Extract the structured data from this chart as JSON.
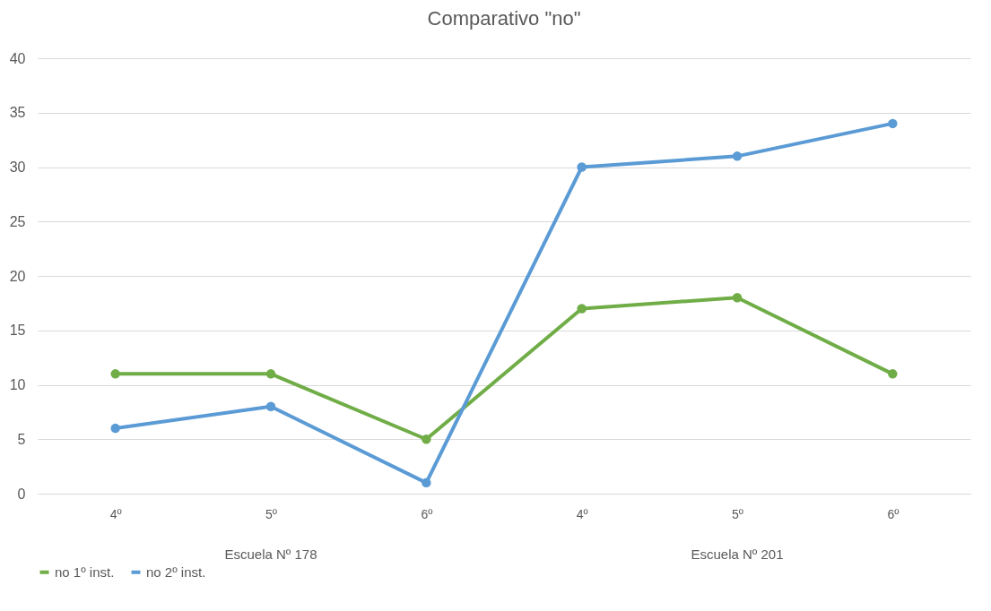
{
  "chart_data": {
    "type": "line",
    "title": "Comparativo \"no\"",
    "categories": [
      "4º",
      "5º",
      "6º",
      "4º",
      "5º",
      "6º"
    ],
    "series": [
      {
        "name": "no 1º inst.",
        "color": "#70ad47",
        "values": [
          11,
          11,
          5,
          17,
          18,
          11
        ]
      },
      {
        "name": "no 2º inst.",
        "color": "#5b9bd5",
        "values": [
          6,
          8,
          1,
          30,
          31,
          34
        ]
      }
    ],
    "annotations": [
      "Escuela Nº 178",
      "Escuela Nº 201"
    ],
    "ylim": [
      0,
      40
    ],
    "yticks": [
      0,
      5,
      10,
      15,
      20,
      25,
      30,
      35,
      40
    ],
    "grid": "y",
    "legend": "bottom",
    "marker": "circle",
    "line_style": "solid"
  }
}
